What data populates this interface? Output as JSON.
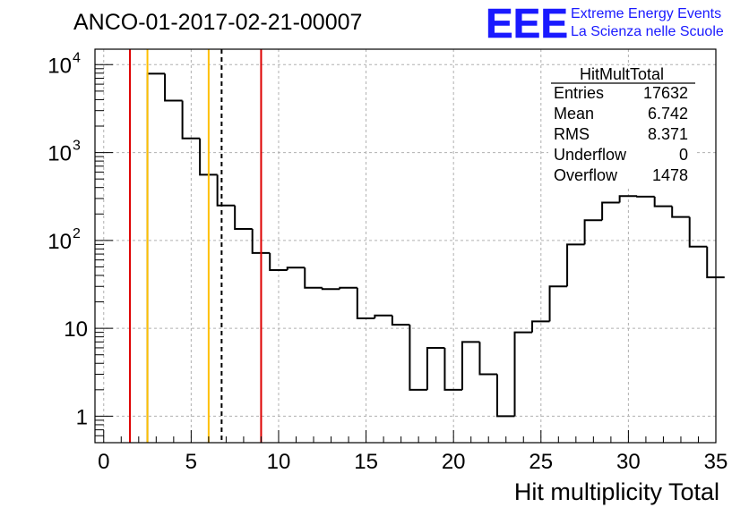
{
  "title": "ANCO-01-2017-02-21-00007",
  "logo": {
    "letters": "EEE",
    "line1": "Extreme Energy Events",
    "line2": "La Scienza nelle Scuole",
    "color": "#1a1aff"
  },
  "stats": {
    "name": "HitMultTotal",
    "rows": [
      {
        "label": "Entries",
        "value": "17632"
      },
      {
        "label": "Mean",
        "value": "6.742"
      },
      {
        "label": "RMS",
        "value": "8.371"
      },
      {
        "label": "Underflow",
        "value": "0"
      },
      {
        "label": "Overflow",
        "value": "1478"
      }
    ]
  },
  "chart_data": {
    "type": "bar",
    "histogram": true,
    "title": "ANCO-01-2017-02-21-00007",
    "xlabel": "Hit multiplicity Total",
    "ylabel": "",
    "xlim": [
      -0.5,
      35
    ],
    "ylim": [
      0.5,
      15000
    ],
    "yscale": "log",
    "grid": true,
    "bin_edges_start": 2.5,
    "bin_width": 1,
    "values": [
      7900,
      3900,
      1450,
      560,
      250,
      135,
      72,
      46,
      49,
      29,
      28,
      29,
      13,
      14,
      11,
      2,
      6,
      2,
      7,
      3,
      1,
      9,
      12,
      30,
      90,
      170,
      270,
      320,
      315,
      245,
      185,
      85,
      38
    ],
    "xticks": [
      "0",
      "5",
      "10",
      "15",
      "20",
      "25",
      "30",
      "35"
    ],
    "yticks": [
      "1",
      "10",
      "10^2",
      "10^3",
      "10^4"
    ],
    "vertical_lines": [
      {
        "x": 1.5,
        "color": "#dd0000",
        "style": "solid"
      },
      {
        "x": 2.5,
        "color": "#ffc000",
        "style": "solid"
      },
      {
        "x": 6.0,
        "color": "#ffc000",
        "style": "solid"
      },
      {
        "x": 6.742,
        "color": "#000000",
        "style": "dashed"
      },
      {
        "x": 9.0,
        "color": "#dd0000",
        "style": "solid"
      }
    ]
  }
}
